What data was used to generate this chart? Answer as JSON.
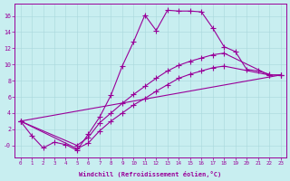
{
  "xlabel": "Windchill (Refroidissement éolien,°C)",
  "background_color": "#c8eef0",
  "line_color": "#990099",
  "xlim": [
    -0.5,
    23.5
  ],
  "ylim": [
    -1.5,
    17.5
  ],
  "xticks": [
    0,
    1,
    2,
    3,
    4,
    5,
    6,
    7,
    8,
    9,
    10,
    11,
    12,
    13,
    14,
    15,
    16,
    17,
    18,
    19,
    20,
    21,
    22,
    23
  ],
  "yticks": [
    0,
    2,
    4,
    6,
    8,
    10,
    12,
    14,
    16
  ],
  "ytick_labels": [
    "-0",
    "2",
    "4",
    "6",
    "8",
    "10",
    "12",
    "14",
    "16"
  ],
  "series": [
    {
      "x": [
        0,
        1,
        2,
        3,
        4,
        5,
        6,
        7,
        8,
        9,
        10,
        11,
        12,
        13,
        14,
        15,
        16,
        17,
        18,
        19,
        20,
        21,
        22
      ],
      "y": [
        3.0,
        1.2,
        -0.3,
        0.4,
        0.1,
        -0.6,
        1.4,
        3.5,
        6.2,
        9.8,
        12.8,
        16.1,
        14.2,
        16.7,
        16.6,
        16.6,
        16.5,
        14.5,
        12.2,
        11.6,
        9.4,
        9.2,
        8.8
      ]
    },
    {
      "x": [
        0,
        5,
        6,
        7,
        8,
        9,
        10,
        11,
        12,
        13,
        14,
        15,
        16,
        17,
        18,
        22,
        23
      ],
      "y": [
        3.0,
        0.0,
        1.0,
        2.8,
        4.0,
        5.2,
        6.3,
        7.3,
        8.3,
        9.2,
        9.9,
        10.4,
        10.8,
        11.2,
        11.4,
        8.7,
        8.7
      ]
    },
    {
      "x": [
        0,
        5,
        6,
        7,
        8,
        9,
        10,
        11,
        12,
        13,
        14,
        15,
        16,
        17,
        18,
        22,
        23
      ],
      "y": [
        3.0,
        -0.4,
        0.3,
        1.8,
        3.0,
        4.0,
        5.0,
        5.8,
        6.7,
        7.5,
        8.3,
        8.8,
        9.2,
        9.6,
        9.8,
        8.7,
        8.7
      ]
    },
    {
      "x": [
        0,
        23
      ],
      "y": [
        3.0,
        8.7
      ]
    }
  ]
}
